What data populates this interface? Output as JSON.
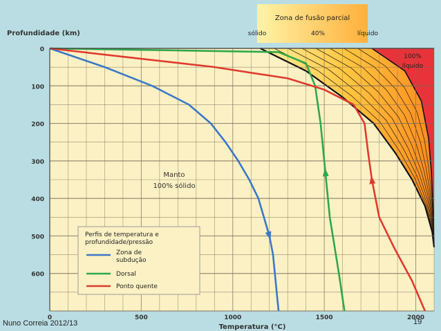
{
  "footer": {
    "author": "Nuno Correia 2012/13",
    "slide_number": "19"
  },
  "chart_data": {
    "type": "line",
    "title": "",
    "xlabel": "Temperatura (°C)",
    "ylabel": "Profundidade (km)",
    "xlim": [
      0,
      2100
    ],
    "ylim": [
      0,
      700
    ],
    "y_inverted": true,
    "x_ticks": [
      0,
      500,
      1000,
      1500,
      2000
    ],
    "y_ticks": [
      0,
      100,
      200,
      300,
      400,
      500,
      600
    ],
    "grid": true,
    "legend_position": "bottom-center",
    "legend_title": "Perfis de temperatura e profundidade/pressão",
    "region_labels": {
      "mantle_line1": "Manto",
      "mantle_line2": "100% sólido",
      "liquid_line1": "100%",
      "liquid_line2": "líquido",
      "melt_zone_title": "Zona de fusão parcial",
      "solid": "sólido",
      "forty": "40%",
      "liquid": "líquido"
    },
    "solidus": [
      [
        1150,
        0
      ],
      [
        1400,
        60
      ],
      [
        1600,
        130
      ],
      [
        1770,
        200
      ],
      [
        1890,
        280
      ],
      [
        1980,
        350
      ],
      [
        2050,
        420
      ],
      [
        2090,
        490
      ],
      [
        2100,
        530
      ]
    ],
    "liquidus": [
      [
        1760,
        0
      ],
      [
        1940,
        60
      ],
      [
        2030,
        140
      ],
      [
        2070,
        240
      ],
      [
        2085,
        330
      ],
      [
        2095,
        430
      ],
      [
        2100,
        530
      ]
    ],
    "series": [
      {
        "name": "Zona de subdução",
        "color": "#3a78c8",
        "points": [
          [
            0,
            0
          ],
          [
            300,
            50
          ],
          [
            560,
            100
          ],
          [
            760,
            150
          ],
          [
            880,
            200
          ],
          [
            960,
            250
          ],
          [
            1030,
            300
          ],
          [
            1090,
            350
          ],
          [
            1140,
            400
          ],
          [
            1170,
            450
          ],
          [
            1200,
            500
          ],
          [
            1220,
            550
          ],
          [
            1240,
            650
          ],
          [
            1250,
            700
          ]
        ],
        "arrow_at": 500
      },
      {
        "name": "Dorsal",
        "color": "#2ea84a",
        "points": [
          [
            0,
            0
          ],
          [
            1250,
            10
          ],
          [
            1400,
            40
          ],
          [
            1450,
            100
          ],
          [
            1480,
            200
          ],
          [
            1500,
            300
          ],
          [
            1530,
            450
          ],
          [
            1580,
            600
          ],
          [
            1610,
            700
          ]
        ],
        "arrow_at": 330
      },
      {
        "name": "Ponto quente",
        "color": "#e03a2e",
        "points": [
          [
            0,
            0
          ],
          [
            900,
            50
          ],
          [
            1300,
            80
          ],
          [
            1500,
            110
          ],
          [
            1660,
            150
          ],
          [
            1720,
            200
          ],
          [
            1740,
            280
          ],
          [
            1760,
            350
          ],
          [
            1800,
            450
          ],
          [
            1880,
            530
          ],
          [
            1980,
            620
          ],
          [
            2050,
            700
          ]
        ],
        "arrow_at": 350
      }
    ]
  }
}
